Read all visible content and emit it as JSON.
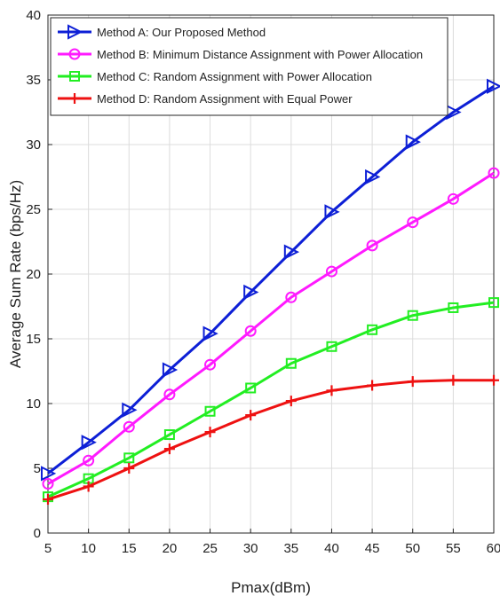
{
  "chart_data": {
    "type": "line",
    "title": "",
    "xlabel": "Pmax(dBm)",
    "ylabel": "Average Sum Rate (bps/Hz)",
    "xlim": [
      5,
      60
    ],
    "ylim": [
      0,
      40
    ],
    "xticks": [
      5,
      10,
      15,
      20,
      25,
      30,
      35,
      40,
      45,
      50,
      55,
      60
    ],
    "yticks": [
      0,
      5,
      10,
      15,
      20,
      25,
      30,
      35,
      40
    ],
    "grid": true,
    "legend_position": "top-right",
    "x": [
      5,
      10,
      15,
      20,
      25,
      30,
      35,
      40,
      45,
      50,
      55,
      60
    ],
    "series": [
      {
        "name": "Method A: Our Proposed Method",
        "color": "#0d1fd6",
        "marker": "triangle-right",
        "values": [
          4.6,
          7.0,
          9.5,
          12.6,
          15.4,
          18.6,
          21.7,
          24.8,
          27.5,
          30.2,
          32.5,
          34.5
        ]
      },
      {
        "name": "Method B: Minimum Distance Assignment with Power Allocation",
        "color": "#ff1aff",
        "marker": "circle",
        "values": [
          3.8,
          5.6,
          8.2,
          10.7,
          13.0,
          15.6,
          18.2,
          20.2,
          22.2,
          24.0,
          25.8,
          27.8
        ]
      },
      {
        "name": "Method C: Random Assignment with Power Allocation",
        "color": "#22ee22",
        "marker": "square",
        "values": [
          2.8,
          4.2,
          5.8,
          7.6,
          9.4,
          11.2,
          13.1,
          14.4,
          15.7,
          16.8,
          17.4,
          17.8
        ]
      },
      {
        "name": "Method D: Random Assignment with Equal Power",
        "color": "#ee1111",
        "marker": "plus",
        "values": [
          2.6,
          3.6,
          5.0,
          6.5,
          7.8,
          9.1,
          10.2,
          11.0,
          11.4,
          11.7,
          11.8,
          11.8
        ]
      }
    ]
  }
}
